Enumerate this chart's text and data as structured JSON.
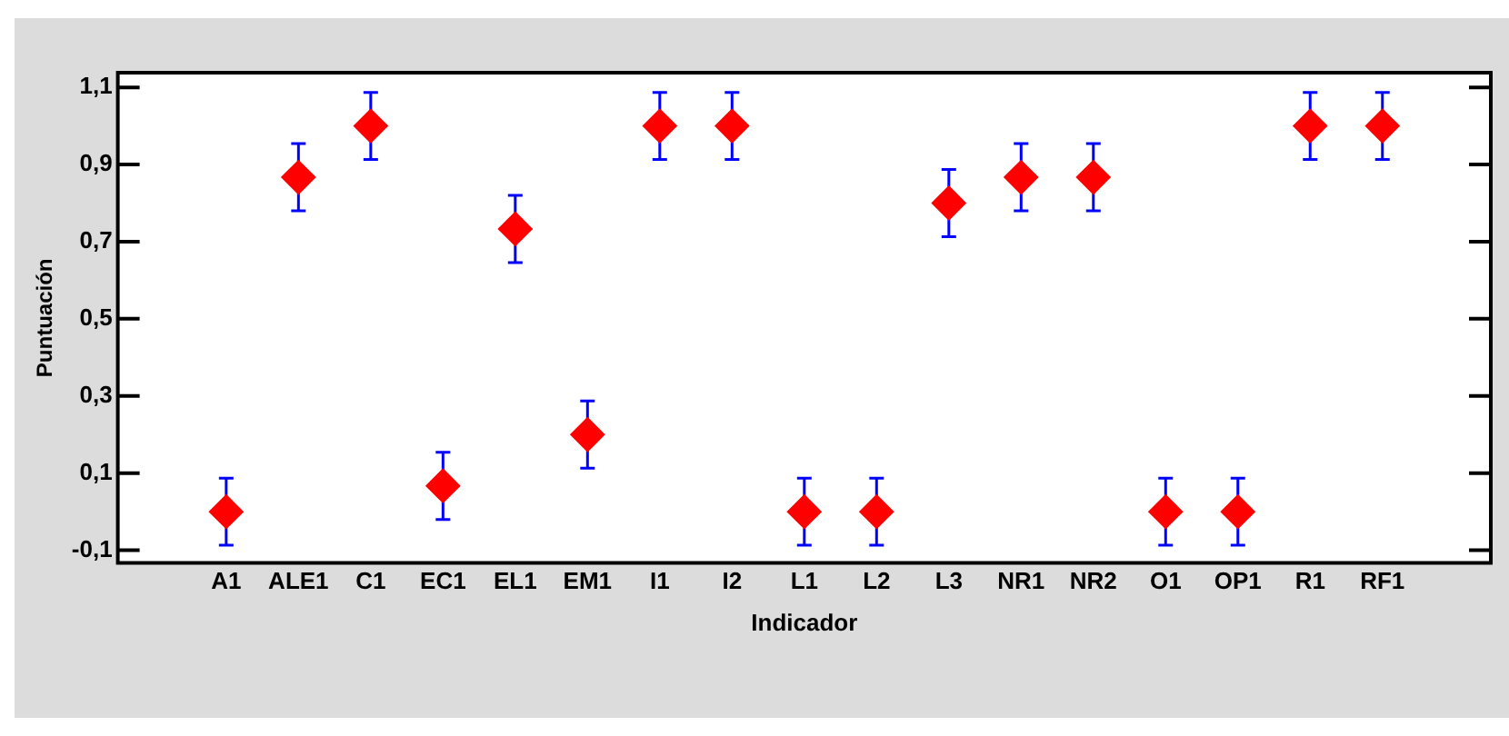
{
  "chart_data": {
    "type": "scatter",
    "xlabel": "Indicador",
    "ylabel": "Puntuación",
    "categories": [
      "A1",
      "ALE1",
      "C1",
      "EC1",
      "EL1",
      "EM1",
      "I1",
      "I2",
      "L1",
      "L2",
      "L3",
      "NR1",
      "NR2",
      "O1",
      "OP1",
      "R1",
      "RF1"
    ],
    "series": [
      {
        "color": "#ff0000",
        "values": [
          0,
          0.867,
          1,
          0.067,
          0.733,
          0.2,
          1,
          1,
          0,
          0,
          0.8,
          0.867,
          0.867,
          0,
          0,
          1,
          1
        ],
        "errors": [
          0.087,
          0.087,
          0.087,
          0.087,
          0.087,
          0.087,
          0.087,
          0.087,
          0.087,
          0.087,
          0.087,
          0.087,
          0.087,
          0.087,
          0.087,
          0.087,
          0.087
        ]
      }
    ],
    "ylim": [
      -0.133,
      1.138
    ],
    "yticks": [
      {
        "value": -0.1,
        "label": "-0,1"
      },
      {
        "value": 0.1,
        "label": "0,1"
      },
      {
        "value": 0.3,
        "label": "0,3"
      },
      {
        "value": 0.5,
        "label": "0,5"
      },
      {
        "value": 0.7,
        "label": "0,7"
      },
      {
        "value": 0.9,
        "label": "0,9"
      },
      {
        "value": 1.1,
        "label": "1,1"
      }
    ],
    "marker": "diamond",
    "grid": false,
    "legend": false
  }
}
